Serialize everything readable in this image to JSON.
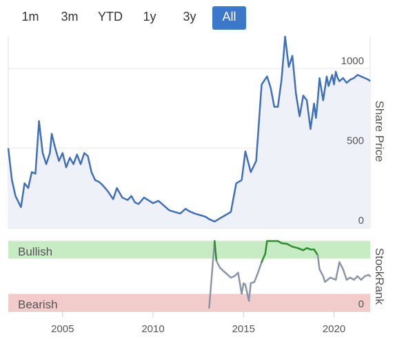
{
  "range_buttons": [
    {
      "label": "1m",
      "active": false
    },
    {
      "label": "3m",
      "active": false
    },
    {
      "label": "YTD",
      "active": false
    },
    {
      "label": "1y",
      "active": false
    },
    {
      "label": "3y",
      "active": false
    },
    {
      "label": "All",
      "active": true
    }
  ],
  "colors": {
    "accent": "#3b78c9",
    "price_line": "#3f6fba",
    "price_fill": "#eef1f8",
    "bullish_band": "#c7ebc2",
    "bearish_band": "#f1cccb",
    "bullish_line": "#2e8b2e",
    "bearish_line": "#c0393b",
    "neutral_line": "#8a95a6"
  },
  "chart_data": [
    {
      "type": "area",
      "ylabel": "Share Price",
      "ylim": [
        0,
        1200
      ],
      "y_ticks": [
        "0",
        "500",
        "1000"
      ],
      "grid": true,
      "x": [
        2002.0,
        2002.2,
        2002.4,
        2002.7,
        2002.9,
        2003.1,
        2003.3,
        2003.5,
        2003.7,
        2003.9,
        2004.1,
        2004.3,
        2004.4,
        2004.6,
        2004.8,
        2005.0,
        2005.2,
        2005.4,
        2005.6,
        2005.8,
        2006.0,
        2006.2,
        2006.4,
        2006.6,
        2006.8,
        2007.0,
        2007.2,
        2007.5,
        2007.8,
        2008.0,
        2008.3,
        2008.6,
        2008.8,
        2009.0,
        2009.2,
        2009.5,
        2009.8,
        2010.0,
        2010.3,
        2010.6,
        2010.9,
        2011.2,
        2011.5,
        2011.8,
        2012.0,
        2012.3,
        2012.6,
        2012.9,
        2013.1,
        2013.4,
        2013.7,
        2014.0,
        2014.3,
        2014.6,
        2014.9,
        2015.1,
        2015.4,
        2015.7,
        2016.0,
        2016.3,
        2016.5,
        2016.7,
        2016.9,
        2017.1,
        2017.3,
        2017.5,
        2017.7,
        2017.9,
        2018.1,
        2018.3,
        2018.5,
        2018.7,
        2018.9,
        2019.0,
        2019.1,
        2019.2,
        2019.4,
        2019.6,
        2019.7,
        2019.9,
        2020.0,
        2020.1,
        2020.2,
        2020.3,
        2020.5,
        2020.7,
        2020.9,
        2021.1,
        2021.3,
        2021.5,
        2021.7,
        2021.9,
        2022.0
      ],
      "y": [
        500,
        300,
        200,
        130,
        280,
        250,
        350,
        340,
        670,
        470,
        400,
        470,
        590,
        500,
        420,
        470,
        380,
        440,
        400,
        460,
        400,
        470,
        450,
        350,
        300,
        290,
        270,
        230,
        180,
        250,
        190,
        175,
        200,
        160,
        150,
        190,
        170,
        155,
        170,
        140,
        110,
        100,
        90,
        120,
        105,
        90,
        80,
        70,
        55,
        40,
        60,
        80,
        100,
        280,
        300,
        480,
        350,
        420,
        900,
        950,
        880,
        760,
        760,
        930,
        1200,
        1010,
        1080,
        840,
        700,
        830,
        800,
        620,
        780,
        690,
        800,
        940,
        800,
        950,
        890,
        960,
        900,
        980,
        940,
        920,
        940,
        910,
        930,
        940,
        960,
        950,
        940,
        930,
        920
      ],
      "series": [
        {
          "values_ref": "y"
        }
      ]
    },
    {
      "type": "line",
      "ylabel": "StockRank",
      "ylim": [
        0,
        100
      ],
      "y_ticks": [
        "0"
      ],
      "bands": [
        {
          "label": "Bullish",
          "from": 75,
          "to": 100
        },
        {
          "label": "Bearish",
          "from": 0,
          "to": 25
        }
      ],
      "x_ticks": [
        "2005",
        "2010",
        "2015",
        "2020"
      ],
      "x": [
        2013.1,
        2013.4,
        2013.5,
        2013.7,
        2014.0,
        2014.3,
        2014.5,
        2014.7,
        2014.9,
        2015.0,
        2015.1,
        2015.3,
        2015.4,
        2015.6,
        2015.8,
        2016.0,
        2016.2,
        2016.3,
        2016.5,
        2016.7,
        2016.9,
        2017.1,
        2017.4,
        2017.7,
        2018.0,
        2018.3,
        2018.5,
        2018.7,
        2018.9,
        2019.1,
        2019.2,
        2019.4,
        2019.5,
        2019.8,
        2020.1,
        2020.3,
        2020.5,
        2020.7,
        2020.9,
        2021.1,
        2021.3,
        2021.5,
        2021.7,
        2021.9,
        2022.0
      ],
      "y": [
        5,
        100,
        72,
        62,
        55,
        48,
        50,
        55,
        25,
        40,
        38,
        15,
        40,
        42,
        55,
        70,
        82,
        100,
        100,
        100,
        100,
        97,
        96,
        92,
        90,
        87,
        90,
        88,
        88,
        80,
        60,
        50,
        42,
        48,
        45,
        70,
        60,
        45,
        48,
        45,
        50,
        45,
        50,
        52,
        50
      ]
    }
  ]
}
